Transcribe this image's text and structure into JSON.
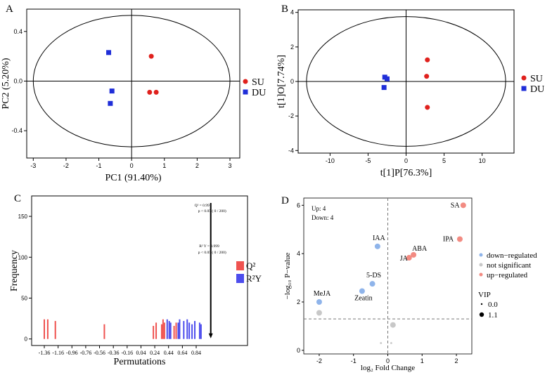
{
  "colors": {
    "su": "#e0211d",
    "du": "#1f2ed8",
    "q2": "#ef5350",
    "r2y": "#4d4ded",
    "down": "#8fb4ea",
    "ns": "#c8c8c8",
    "up": "#f28b82"
  },
  "chart_data": [
    {
      "id": "A",
      "panel_label": "A",
      "type": "scatter",
      "xlabel": "PC1 (91.40%)",
      "ylabel": "PC2 (5.20%)",
      "xlim": [
        -3.2,
        3.3
      ],
      "ylim": [
        -0.62,
        0.58
      ],
      "xticks": [
        -3,
        -2,
        -1,
        0,
        1,
        2,
        3
      ],
      "yticks": [
        -0.4,
        0.0,
        0.4
      ],
      "ytick_labels": [
        "-0.4",
        "0.0",
        "0.4"
      ],
      "ellipse": {
        "rx": 3.0,
        "ry": 0.53
      },
      "series": [
        {
          "name": "SU",
          "marker": "circle",
          "points": [
            [
              0.6,
              0.2
            ],
            [
              0.55,
              -0.09
            ],
            [
              0.75,
              -0.09
            ]
          ]
        },
        {
          "name": "DU",
          "marker": "square",
          "points": [
            [
              -0.7,
              0.23
            ],
            [
              -0.6,
              -0.08
            ],
            [
              -0.65,
              -0.18
            ]
          ]
        }
      ]
    },
    {
      "id": "B",
      "panel_label": "B",
      "type": "scatter",
      "xlabel": "t[1]P[76.3%]",
      "ylabel": "t[1]O[7.74%]",
      "xlim": [
        -14.2,
        14.2
      ],
      "ylim": [
        -4.15,
        4.15
      ],
      "xticks": [
        -10,
        -5,
        0,
        5,
        10
      ],
      "yticks": [
        -4,
        -2,
        0,
        2,
        4
      ],
      "ellipse": {
        "rx": 13.1,
        "ry": 3.76
      },
      "series": [
        {
          "name": "SU",
          "marker": "circle",
          "points": [
            [
              2.8,
              1.25
            ],
            [
              2.7,
              0.3
            ],
            [
              2.8,
              -1.5
            ]
          ]
        },
        {
          "name": "DU",
          "marker": "square",
          "points": [
            [
              -2.8,
              0.25
            ],
            [
              -2.5,
              0.15
            ],
            [
              -2.9,
              -0.35
            ]
          ]
        }
      ]
    },
    {
      "id": "C",
      "panel_label": "C",
      "type": "bar",
      "xlabel": "Permutations",
      "ylabel": "Frequency",
      "ylim": [
        -8,
        175
      ],
      "yticks": [
        0,
        50,
        100,
        150
      ],
      "xtick_labels": [
        "-1.36",
        "-1.16",
        "-0.96",
        "-0.76",
        "-0.56",
        "-0.36",
        "-0.16",
        "0.04",
        "0.24",
        "0.44",
        "0.64",
        "0.84"
      ],
      "series": [
        {
          "name": "Q²",
          "values": [
            [
              -1.36,
              24
            ],
            [
              -1.31,
              24
            ],
            [
              -1.2,
              22
            ],
            [
              -0.49,
              18
            ],
            [
              0.22,
              16
            ],
            [
              0.26,
              20
            ],
            [
              0.34,
              18
            ],
            [
              0.36,
              24
            ],
            [
              0.38,
              20
            ],
            [
              0.52,
              16
            ],
            [
              0.55,
              20
            ]
          ]
        },
        {
          "name": "R²Y",
          "values": [
            [
              0.42,
              24
            ],
            [
              0.45,
              22
            ],
            [
              0.47,
              20
            ],
            [
              0.58,
              20
            ],
            [
              0.6,
              24
            ],
            [
              0.66,
              22
            ],
            [
              0.71,
              24
            ],
            [
              0.74,
              20
            ],
            [
              0.78,
              18
            ],
            [
              0.82,
              22
            ],
            [
              0.89,
              20
            ],
            [
              0.91,
              18
            ]
          ]
        }
      ],
      "arrow_x": 1.0,
      "q2_annotation": {
        "line1": "Q² = 0.99",
        "line2": "p < 0.05 ( 0 / 200)"
      },
      "r2y_annotation": {
        "line1": "R² Y = 0.999",
        "line2": "p < 0.05 ( 0 / 200)"
      }
    },
    {
      "id": "D",
      "panel_label": "D",
      "type": "scatter",
      "xlabel": "log₂ Fold Change",
      "ylabel": "−log₁₀ P−value",
      "xlim": [
        -2.45,
        2.45
      ],
      "ylim": [
        -0.15,
        6.3
      ],
      "xticks": [
        -2,
        -1,
        0,
        1,
        2
      ],
      "yticks": [
        0,
        2,
        4,
        6
      ],
      "hline": 1.3,
      "vline": 0,
      "counts": {
        "up": "Up: 4",
        "down": "Down: 4"
      },
      "points": [
        {
          "label": "SA",
          "x": 2.2,
          "y": 6.0,
          "group": "up",
          "size": 1.1
        },
        {
          "label": "IPA",
          "x": 2.1,
          "y": 4.6,
          "group": "up",
          "size": 1.1
        },
        {
          "label": "ABA",
          "x": 0.75,
          "y": 3.95,
          "group": "up",
          "size": 1.1
        },
        {
          "label": "JA",
          "x": 0.62,
          "y": 3.83,
          "group": "up",
          "size": 1.1
        },
        {
          "label": "IAA",
          "x": -0.3,
          "y": 4.3,
          "group": "down",
          "size": 1.1
        },
        {
          "label": "5-DS",
          "x": -0.45,
          "y": 2.75,
          "group": "down",
          "size": 1.1
        },
        {
          "label": "Zeatin",
          "x": -0.75,
          "y": 2.45,
          "group": "down",
          "size": 1.1
        },
        {
          "label": "MeJA",
          "x": -2.0,
          "y": 2.0,
          "group": "down",
          "size": 1.1
        },
        {
          "label": "",
          "x": -2.0,
          "y": 1.55,
          "group": "ns",
          "size": 1.1
        },
        {
          "label": "",
          "x": 0.15,
          "y": 1.05,
          "group": "ns",
          "size": 1.1
        },
        {
          "label": "",
          "x": -0.2,
          "y": 0.3,
          "group": "ns",
          "size": 0.0
        },
        {
          "label": "",
          "x": 0.1,
          "y": 0.3,
          "group": "ns",
          "size": 0.0
        }
      ],
      "legend": {
        "items": [
          "down−regulated",
          "not significant",
          "up−regulated"
        ],
        "size_title": "VIP",
        "sizes": [
          "0.0",
          "1.1"
        ]
      }
    }
  ]
}
